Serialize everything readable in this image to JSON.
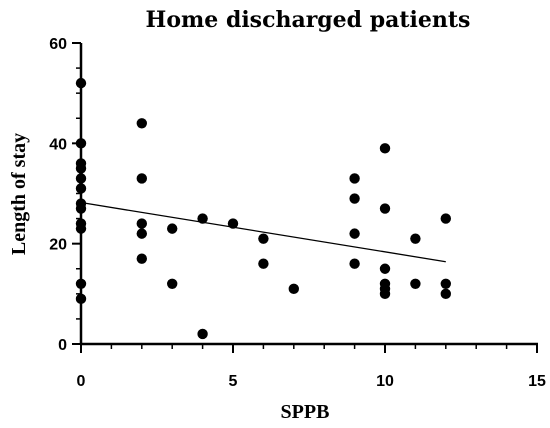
{
  "chart_data": {
    "type": "scatter",
    "title": "Home discharged patients",
    "xlabel": "SPPB",
    "ylabel": "Length of stay",
    "xlim": [
      0,
      15
    ],
    "ylim": [
      0,
      60
    ],
    "x_ticks": [
      0,
      5,
      10,
      15
    ],
    "y_ticks": [
      0,
      20,
      40,
      60
    ],
    "x_tick_labels": [
      "0",
      "5",
      "10",
      "15"
    ],
    "y_tick_labels": [
      "0",
      "20",
      "40",
      "60"
    ],
    "grid": false,
    "legend": "none",
    "marker_color": "#000000",
    "points": [
      {
        "x": 0,
        "y": 52
      },
      {
        "x": 0,
        "y": 40
      },
      {
        "x": 0,
        "y": 36
      },
      {
        "x": 0,
        "y": 35
      },
      {
        "x": 0,
        "y": 33
      },
      {
        "x": 0,
        "y": 31
      },
      {
        "x": 0,
        "y": 28
      },
      {
        "x": 0,
        "y": 27
      },
      {
        "x": 0,
        "y": 24
      },
      {
        "x": 0,
        "y": 23
      },
      {
        "x": 0,
        "y": 12
      },
      {
        "x": 0,
        "y": 9
      },
      {
        "x": 2,
        "y": 44
      },
      {
        "x": 2,
        "y": 33
      },
      {
        "x": 2,
        "y": 24
      },
      {
        "x": 2,
        "y": 22
      },
      {
        "x": 2,
        "y": 17
      },
      {
        "x": 3,
        "y": 23
      },
      {
        "x": 3,
        "y": 12
      },
      {
        "x": 4,
        "y": 25
      },
      {
        "x": 4,
        "y": 2
      },
      {
        "x": 5,
        "y": 24
      },
      {
        "x": 6,
        "y": 21
      },
      {
        "x": 6,
        "y": 16
      },
      {
        "x": 7,
        "y": 11
      },
      {
        "x": 9,
        "y": 33
      },
      {
        "x": 9,
        "y": 29
      },
      {
        "x": 9,
        "y": 22
      },
      {
        "x": 9,
        "y": 16
      },
      {
        "x": 10,
        "y": 39
      },
      {
        "x": 10,
        "y": 27
      },
      {
        "x": 10,
        "y": 15
      },
      {
        "x": 10,
        "y": 12
      },
      {
        "x": 10,
        "y": 11
      },
      {
        "x": 10,
        "y": 10
      },
      {
        "x": 11,
        "y": 21
      },
      {
        "x": 11,
        "y": 12
      },
      {
        "x": 12,
        "y": 25
      },
      {
        "x": 12,
        "y": 12
      },
      {
        "x": 12,
        "y": 10
      }
    ],
    "trend_line": {
      "x": [
        0,
        12
      ],
      "y": [
        28.2,
        16.4
      ]
    }
  }
}
